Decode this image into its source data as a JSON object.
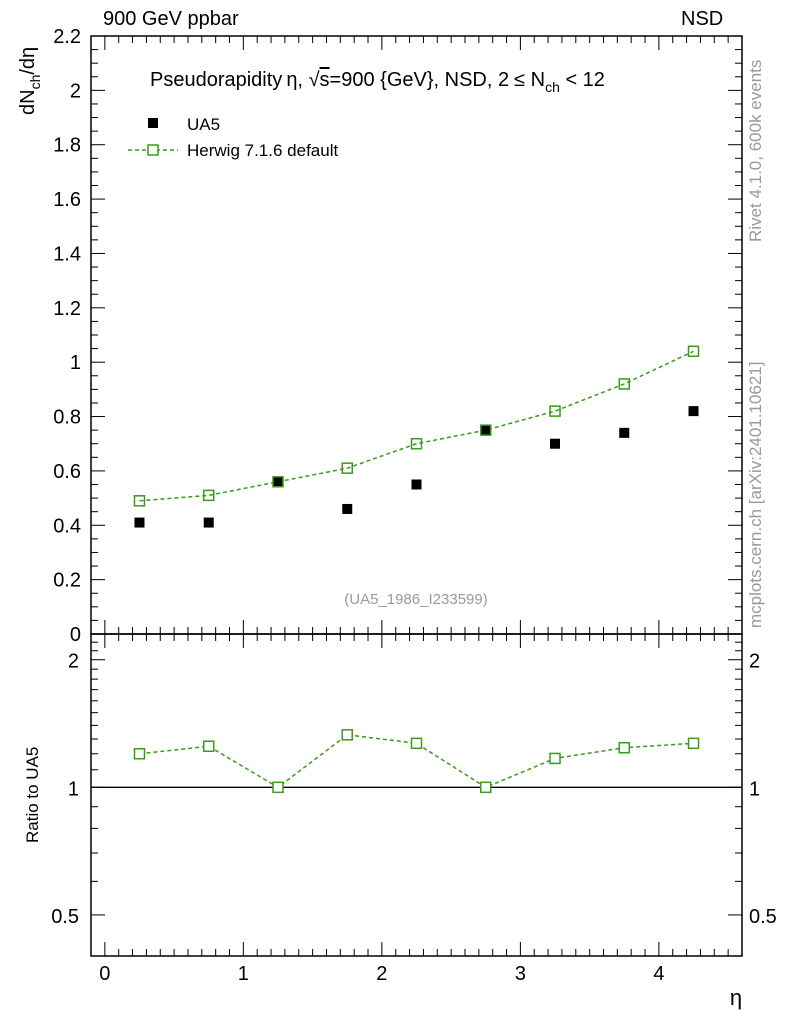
{
  "header": {
    "left": "900 GeV ppbar",
    "right": "NSD"
  },
  "side_labels": {
    "rivet": "Rivet 4.1.0,  600k events",
    "mcplots": "mcplots.cern.ch [arXiv:2401.10621]"
  },
  "chart_data": {
    "type": "scatter",
    "title": "Pseudorapidity η, √s=900 {GeV}, NSD, 2 ≤ N_ch < 12",
    "title_parts": {
      "pre": "Pseudorapidity",
      "eta": "η, ",
      "root": "√",
      "s": "s",
      "post": "=900 {GeV}, NSD, 2",
      "le": "≤",
      "n": " N",
      "sub": "ch",
      "tail": " < 12"
    },
    "analysis_tag": "(UA5_1986_I233599)",
    "xlabel": "η",
    "ylabel": {
      "main": "dN",
      "sub": "ch",
      "tail": "/dη"
    },
    "ratio_ylabel": "Ratio to UA5",
    "xlim": [
      -0.1,
      4.6
    ],
    "ylim": [
      0,
      2.2
    ],
    "ratio_ylim": [
      0.4,
      2.3
    ],
    "x_ticks": [
      "0",
      "1",
      "2",
      "3",
      "4"
    ],
    "y_ticks": [
      "0",
      "0.2",
      "0.4",
      "0.6",
      "0.8",
      "1",
      "1.2",
      "1.4",
      "1.6",
      "1.8",
      "2",
      "2.2"
    ],
    "ratio_ticks": [
      "0.5",
      "1",
      "2"
    ],
    "x": [
      0.25,
      0.75,
      1.25,
      1.75,
      2.25,
      2.75,
      3.25,
      3.75,
      4.25
    ],
    "series": [
      {
        "name": "UA5",
        "color": "#000000",
        "marker": "filled-square",
        "values": [
          0.41,
          0.41,
          0.56,
          0.46,
          0.55,
          0.75,
          0.7,
          0.74,
          0.82
        ]
      },
      {
        "name": "Herwig 7.1.6 default",
        "color": "#3a9a1a",
        "marker": "open-square",
        "line": "dashed",
        "values": [
          0.49,
          0.51,
          0.56,
          0.61,
          0.7,
          0.75,
          0.82,
          0.92,
          1.04
        ]
      }
    ],
    "ratio": [
      1.2,
      1.25,
      1.0,
      1.33,
      1.27,
      1.0,
      1.17,
      1.24,
      1.27
    ]
  }
}
